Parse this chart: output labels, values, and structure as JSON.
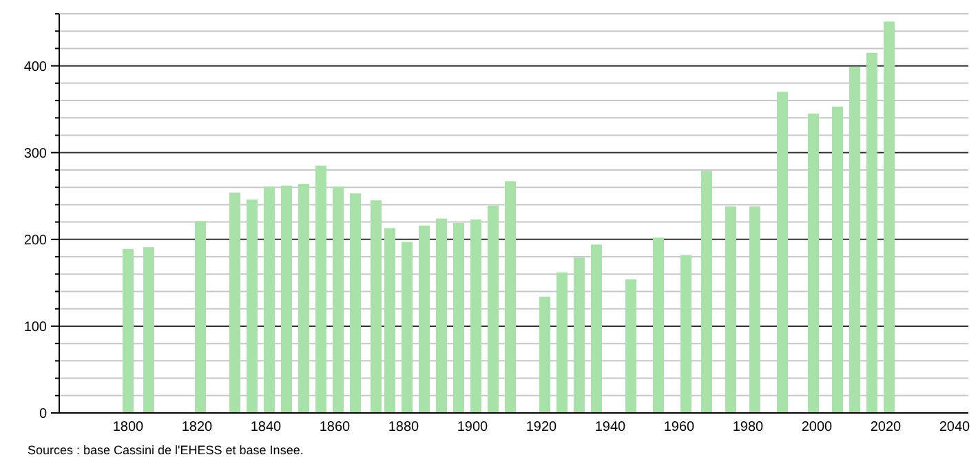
{
  "chart_data": {
    "type": "bar",
    "x": [
      1800,
      1806,
      1821,
      1831,
      1836,
      1841,
      1846,
      1851,
      1856,
      1861,
      1866,
      1872,
      1876,
      1881,
      1886,
      1891,
      1896,
      1901,
      1906,
      1911,
      1921,
      1926,
      1931,
      1936,
      1946,
      1954,
      1962,
      1968,
      1975,
      1982,
      1990,
      1999,
      2006,
      2011,
      2016,
      2021
    ],
    "values": [
      189,
      191,
      221,
      254,
      246,
      261,
      262,
      264,
      285,
      261,
      253,
      245,
      213,
      197,
      216,
      224,
      219,
      223,
      239,
      267,
      134,
      162,
      179,
      194,
      154,
      202,
      182,
      279,
      238,
      238,
      370,
      345,
      353,
      399,
      415,
      451
    ],
    "color": "#a8e2a8",
    "xlim": [
      1780,
      2044
    ],
    "xticks": [
      1800,
      1820,
      1840,
      1860,
      1880,
      1900,
      1920,
      1940,
      1960,
      1980,
      2000,
      2020,
      2040
    ],
    "ylim": [
      0,
      460
    ],
    "yticks": [
      0,
      {
        "value": 20,
        "label": null
      },
      {
        "value": 40,
        "label": null
      },
      {
        "value": 60,
        "label": null
      },
      {
        "value": 80,
        "label": null
      },
      100,
      {
        "value": 120,
        "label": null
      },
      {
        "value": 140,
        "label": null
      },
      {
        "value": 160,
        "label": null
      },
      {
        "value": 180,
        "label": null
      },
      200,
      {
        "value": 220,
        "label": null
      },
      {
        "value": 240,
        "label": null
      },
      {
        "value": 260,
        "label": null
      },
      {
        "value": 280,
        "label": null
      },
      300,
      {
        "value": 320,
        "label": null
      },
      {
        "value": 340,
        "label": null
      },
      {
        "value": 360,
        "label": null
      },
      {
        "value": 380,
        "label": null
      },
      400,
      {
        "value": 420,
        "label": null
      },
      {
        "value": 440,
        "label": null
      },
      {
        "value": 460,
        "label": null
      }
    ],
    "grid": true,
    "annotations": [
      "Sources : base Cassini de l'EHESS et base Insee."
    ]
  }
}
